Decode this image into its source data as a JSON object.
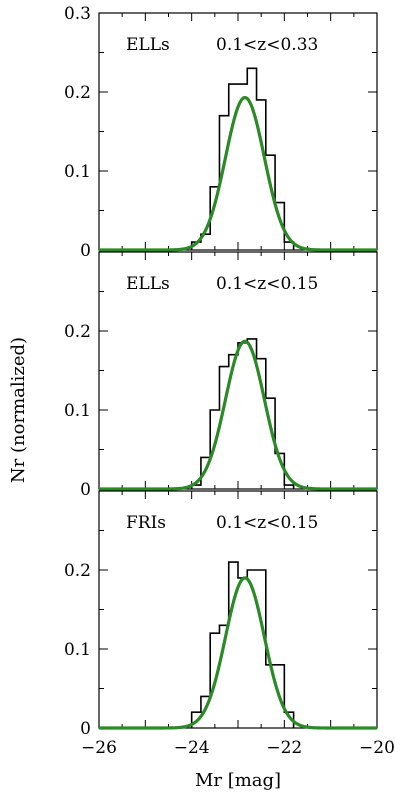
{
  "chart_data": [
    {
      "type": "histogram",
      "label": "ELLs",
      "range_text": "0.1<z<0.33",
      "xlim": [
        -26,
        -20
      ],
      "ylim": [
        0,
        0.3
      ],
      "yticks": [
        0,
        0.1,
        0.2,
        0.3
      ],
      "ytick_labels": [
        "0",
        "0.1",
        "0.2",
        "0.3"
      ],
      "bin_edges": [
        -24.0,
        -23.8,
        -23.6,
        -23.4,
        -23.2,
        -23.0,
        -22.8,
        -22.6,
        -22.4,
        -22.2,
        -22.0,
        -21.8
      ],
      "counts": [
        0.01,
        0.02,
        0.08,
        0.17,
        0.21,
        0.21,
        0.23,
        0.19,
        0.12,
        0.06,
        0.01
      ],
      "fit": {
        "mean": -22.85,
        "sigma": 0.42,
        "peak": 0.193
      }
    },
    {
      "type": "histogram",
      "label": "ELLs",
      "range_text": "0.1<z<0.15",
      "xlim": [
        -26,
        -20
      ],
      "ylim": [
        0,
        0.3
      ],
      "yticks": [
        0,
        0.1,
        0.2
      ],
      "ytick_labels": [
        "0",
        "0.1",
        "0.2"
      ],
      "bin_edges": [
        -24.0,
        -23.8,
        -23.6,
        -23.4,
        -23.2,
        -23.0,
        -22.8,
        -22.6,
        -22.4,
        -22.2,
        -22.0,
        -21.8
      ],
      "counts": [
        0.005,
        0.04,
        0.1,
        0.155,
        0.17,
        0.185,
        0.19,
        0.165,
        0.115,
        0.045,
        0.005
      ],
      "fit": {
        "mean": -22.85,
        "sigma": 0.42,
        "peak": 0.187
      }
    },
    {
      "type": "histogram",
      "label": "FRIs",
      "range_text": "0.1<z<0.15",
      "xlim": [
        -26,
        -20
      ],
      "ylim": [
        0,
        0.3
      ],
      "yticks": [
        0,
        0.1,
        0.2
      ],
      "ytick_labels": [
        "0",
        "0.1",
        "0.2"
      ],
      "xticks": [
        -26,
        -24,
        -22,
        -20
      ],
      "xtick_labels": [
        "−26",
        "−24",
        "−22",
        "−20"
      ],
      "bin_edges": [
        -24.0,
        -23.8,
        -23.6,
        -23.4,
        -23.2,
        -23.0,
        -22.8,
        -22.6,
        -22.4,
        -22.2,
        -22.0,
        -21.8
      ],
      "counts": [
        0.02,
        0.04,
        0.12,
        0.13,
        0.21,
        0.19,
        0.2,
        0.2,
        0.08,
        0.08,
        0.02
      ],
      "fit": {
        "mean": -22.85,
        "sigma": 0.42,
        "peak": 0.19
      }
    }
  ],
  "ylabel": "Nr (normalized)",
  "xlabel": "Mr [mag]",
  "colors": {
    "histogram": "#000000",
    "fit": "#2a8a25",
    "axes": "#000000"
  }
}
